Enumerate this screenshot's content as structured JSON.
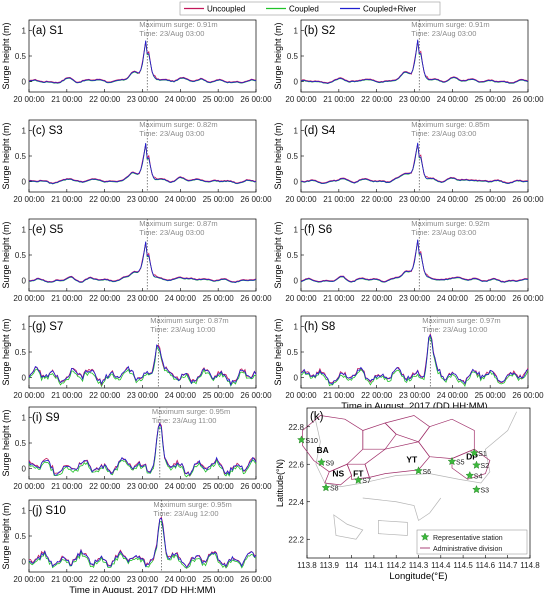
{
  "legend": {
    "items": [
      {
        "label": "Uncoupled",
        "color": "#c2185b"
      },
      {
        "label": "Coupled",
        "color": "#22c22a"
      },
      {
        "label": "Coupled+River",
        "color": "#2020d0"
      }
    ]
  },
  "chart_data": [
    {
      "type": "line",
      "panel": "(a) S1",
      "ylabel": "Surge height (m)",
      "ylim": [
        -0.2,
        1.2
      ],
      "yticks": [
        0,
        0.5,
        1
      ],
      "xticks": [
        "20 00:00",
        "21 00:00",
        "22 00:00",
        "23 00:00",
        "24 00:00",
        "25 00:00",
        "26 00:00"
      ],
      "xlabel": "",
      "annotation": [
        "Maximum surge: 0.91m",
        "Time: 23/Aug 03:00"
      ],
      "peak_time": "23/Aug 03:00",
      "peak_hours": 75,
      "peak": 0.91,
      "style": "smooth"
    },
    {
      "type": "line",
      "panel": "(b) S2",
      "ylabel": "Surge height (m)",
      "ylim": [
        -0.2,
        1.2
      ],
      "yticks": [
        0,
        0.5,
        1
      ],
      "xticks": [
        "20 00:00",
        "21 00:00",
        "22 00:00",
        "23 00:00",
        "24 00:00",
        "25 00:00",
        "26 00:00"
      ],
      "xlabel": "",
      "annotation": [
        "Maximum surge: 0.91m",
        "Time: 23/Aug 03:00"
      ],
      "peak_time": "23/Aug 03:00",
      "peak_hours": 75,
      "peak": 0.91,
      "style": "smooth"
    },
    {
      "type": "line",
      "panel": "(c) S3",
      "ylabel": "Surge height (m)",
      "ylim": [
        -0.2,
        1.2
      ],
      "yticks": [
        0,
        0.5,
        1
      ],
      "xticks": [
        "20 00:00",
        "21 00:00",
        "22 00:00",
        "23 00:00",
        "24 00:00",
        "25 00:00",
        "26 00:00"
      ],
      "xlabel": "",
      "annotation": [
        "Maximum surge: 0.82m",
        "Time: 23/Aug 03:00"
      ],
      "peak_time": "23/Aug 03:00",
      "peak_hours": 75,
      "peak": 0.82,
      "style": "smooth"
    },
    {
      "type": "line",
      "panel": "(d) S4",
      "ylabel": "Surge height (m)",
      "ylim": [
        -0.2,
        1.2
      ],
      "yticks": [
        0,
        0.5,
        1
      ],
      "xticks": [
        "20 00:00",
        "21 00:00",
        "22 00:00",
        "23 00:00",
        "24 00:00",
        "25 00:00",
        "26 00:00"
      ],
      "xlabel": "",
      "annotation": [
        "Maximum surge: 0.85m",
        "Time: 23/Aug 03:00"
      ],
      "peak_time": "23/Aug 03:00",
      "peak_hours": 75,
      "peak": 0.85,
      "style": "smooth"
    },
    {
      "type": "line",
      "panel": "(e) S5",
      "ylabel": "Surge height (m)",
      "ylim": [
        -0.2,
        1.2
      ],
      "yticks": [
        0,
        0.5,
        1
      ],
      "xticks": [
        "20 00:00",
        "21 00:00",
        "22 00:00",
        "23 00:00",
        "24 00:00",
        "25 00:00",
        "26 00:00"
      ],
      "xlabel": "",
      "annotation": [
        "Maximum surge: 0.87m",
        "Time: 23/Aug 03:00"
      ],
      "peak_time": "23/Aug 03:00",
      "peak_hours": 75,
      "peak": 0.87,
      "style": "smooth"
    },
    {
      "type": "line",
      "panel": "(f) S6",
      "ylabel": "Surge height (m)",
      "ylim": [
        -0.2,
        1.2
      ],
      "yticks": [
        0,
        0.5,
        1
      ],
      "xticks": [
        "20 00:00",
        "21 00:00",
        "22 00:00",
        "23 00:00",
        "24 00:00",
        "25 00:00",
        "26 00:00"
      ],
      "xlabel": "",
      "annotation": [
        "Maximum surge: 0.92m",
        "Time: 23/Aug 03:00"
      ],
      "peak_time": "23/Aug 03:00",
      "peak_hours": 75,
      "peak": 0.92,
      "style": "smooth"
    },
    {
      "type": "line",
      "panel": "(g) S7",
      "ylabel": "Surge height (m)",
      "ylim": [
        -0.2,
        1.2
      ],
      "yticks": [
        0,
        0.5,
        1
      ],
      "xticks": [
        "20 00:00",
        "21 00:00",
        "22 00:00",
        "23 00:00",
        "24 00:00",
        "25 00:00",
        "26 00:00"
      ],
      "xlabel": "",
      "annotation": [
        "Maximum surge: 0.87m",
        "Time: 23/Aug 10:00"
      ],
      "peak_time": "23/Aug 10:00",
      "peak_hours": 82,
      "peak": 0.87,
      "style": "noisy"
    },
    {
      "type": "line",
      "panel": "(h) S8",
      "ylabel": "Surge height (m)",
      "ylim": [
        -0.2,
        1.2
      ],
      "yticks": [
        0,
        0.5,
        1
      ],
      "xticks": [
        "20 00:00",
        "21 00:00",
        "22 00:00",
        "23 00:00",
        "24 00:00",
        "25 00:00",
        "26 00:00"
      ],
      "xlabel": "Time in August, 2017 (DD HH:MM)",
      "annotation": [
        "Maximum surge: 0.97m",
        "Time: 23/Aug 10:00"
      ],
      "peak_time": "23/Aug 10:00",
      "peak_hours": 82,
      "peak": 0.97,
      "style": "noisy"
    },
    {
      "type": "line",
      "panel": "(i) S9",
      "ylabel": "Surge height (m)",
      "ylim": [
        -0.2,
        1.2
      ],
      "yticks": [
        0,
        0.5,
        1
      ],
      "xticks": [
        "20 00:00",
        "21 00:00",
        "22 00:00",
        "23 00:00",
        "24 00:00",
        "25 00:00",
        "26 00:00"
      ],
      "xlabel": "",
      "annotation": [
        "Maximum surge: 0.95m",
        "Time: 23/Aug 11:00"
      ],
      "peak_time": "23/Aug 11:00",
      "peak_hours": 83,
      "peak": 0.95,
      "style": "noisy"
    },
    {
      "type": "line",
      "panel": "(j) S10",
      "ylabel": "Surge height (m)",
      "ylim": [
        -0.2,
        1.2
      ],
      "yticks": [
        0,
        0.5,
        1
      ],
      "xticks": [
        "20 00:00",
        "21 00:00",
        "22 00:00",
        "23 00:00",
        "24 00:00",
        "25 00:00",
        "26 00:00"
      ],
      "xlabel": "Time in August, 2017 (DD HH:MM)",
      "annotation": [
        "Maximum surge: 0.95m",
        "Time: 23/Aug 12:00"
      ],
      "peak_time": "23/Aug 12:00",
      "peak_hours": 84,
      "peak": 0.95,
      "style": "noisy"
    }
  ],
  "map": {
    "panel": "(k)",
    "xlabel": "Longitude(°E)",
    "ylabel": "Latitude(°N)",
    "xlim": [
      113.8,
      114.8
    ],
    "ylim": [
      22.1,
      22.9
    ],
    "xticks": [
      "113.8",
      "113.9",
      "114",
      "114.1",
      "114.2",
      "114.3",
      "114.4",
      "114.5",
      "114.6",
      "114.7",
      "114.8"
    ],
    "yticks": [
      "22.2",
      "22.4",
      "22.6",
      "22.8"
    ],
    "stations": [
      {
        "name": "S1",
        "lon": 114.55,
        "lat": 22.66
      },
      {
        "name": "S2",
        "lon": 114.56,
        "lat": 22.595
      },
      {
        "name": "S3",
        "lon": 114.56,
        "lat": 22.465
      },
      {
        "name": "S4",
        "lon": 114.53,
        "lat": 22.54
      },
      {
        "name": "S5",
        "lon": 114.45,
        "lat": 22.615
      },
      {
        "name": "S6",
        "lon": 114.3,
        "lat": 22.565
      },
      {
        "name": "S7",
        "lon": 114.03,
        "lat": 22.515
      },
      {
        "name": "S8",
        "lon": 113.885,
        "lat": 22.475
      },
      {
        "name": "S9",
        "lon": 113.865,
        "lat": 22.61
      },
      {
        "name": "S10",
        "lon": 113.775,
        "lat": 22.73
      }
    ],
    "districts": [
      {
        "label": "BA",
        "lon": 113.87,
        "lat": 22.66
      },
      {
        "label": "NS",
        "lon": 113.94,
        "lat": 22.535
      },
      {
        "label": "FT",
        "lon": 114.03,
        "lat": 22.535
      },
      {
        "label": "YT",
        "lon": 114.27,
        "lat": 22.61
      },
      {
        "label": "DP",
        "lon": 114.54,
        "lat": 22.625
      }
    ],
    "legend": [
      "Representative station",
      "Administrative division"
    ]
  }
}
